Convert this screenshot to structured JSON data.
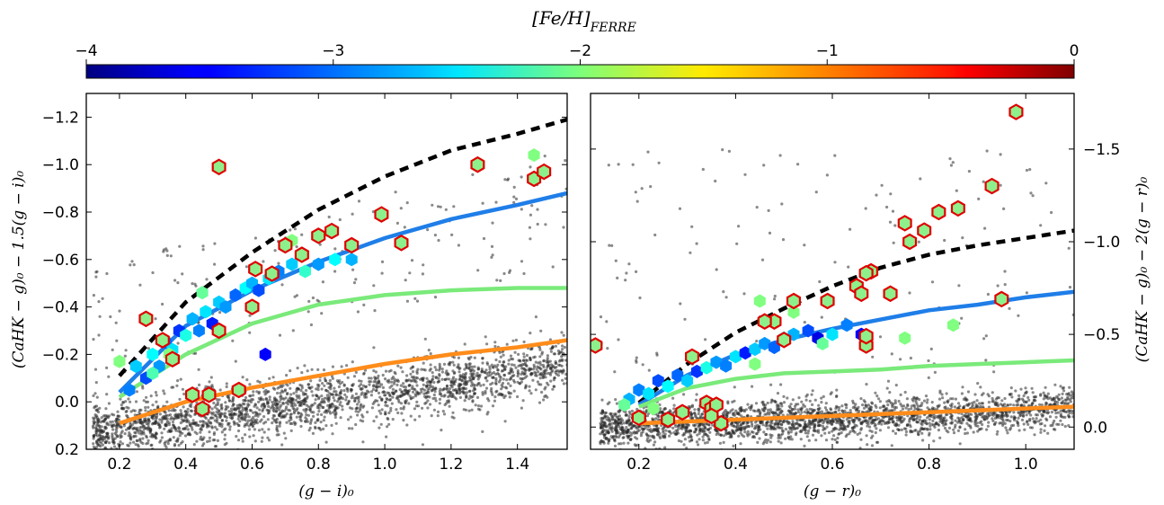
{
  "figure": {
    "colorbar": {
      "label": "[Fe/H]_FERRE",
      "label_main": "[Fe/H]",
      "label_sub": "FERRE",
      "range": [
        -4,
        0
      ],
      "ticks": [
        "−4",
        "−3",
        "−2",
        "−1",
        "0"
      ],
      "tick_values": [
        -4,
        -3,
        -2,
        -1,
        0
      ],
      "colormap": "jet"
    }
  },
  "chart_data": [
    {
      "type": "scatter",
      "panel": "left",
      "xlabel": "(g − i)₀",
      "ylabel": "(CaHK − g)₀ − 1.5(g − i)₀",
      "xlim": [
        0.1,
        1.55
      ],
      "ylim": [
        0.2,
        -1.3
      ],
      "y_inverted": true,
      "xticks": [
        "0.2",
        "0.4",
        "0.6",
        "0.8",
        "1.0",
        "1.2",
        "1.4"
      ],
      "xtick_values": [
        0.2,
        0.4,
        0.6,
        0.8,
        1.0,
        1.2,
        1.4
      ],
      "yticks": [
        "0.2",
        "0.0",
        "−0.2",
        "−0.4",
        "−0.6",
        "−0.8",
        "−1.0",
        "−1.2"
      ],
      "ytick_values": [
        0.2,
        0.0,
        -0.2,
        -0.4,
        -0.6,
        -0.8,
        -1.0,
        -1.2
      ],
      "lines": [
        {
          "color": "#000000",
          "style": "dashed",
          "points": [
            [
              0.2,
              -0.11
            ],
            [
              0.4,
              -0.42
            ],
            [
              0.6,
              -0.63
            ],
            [
              0.8,
              -0.81
            ],
            [
              1.0,
              -0.95
            ],
            [
              1.2,
              -1.06
            ],
            [
              1.4,
              -1.13
            ],
            [
              1.55,
              -1.19
            ]
          ]
        },
        {
          "color": "#1f7ee8",
          "style": "solid",
          "points": [
            [
              0.2,
              -0.04
            ],
            [
              0.4,
              -0.32
            ],
            [
              0.6,
              -0.47
            ],
            [
              0.8,
              -0.59
            ],
            [
              1.0,
              -0.69
            ],
            [
              1.2,
              -0.77
            ],
            [
              1.4,
              -0.83
            ],
            [
              1.55,
              -0.88
            ]
          ]
        },
        {
          "color": "#7aea7a",
          "style": "solid",
          "points": [
            [
              0.2,
              -0.02
            ],
            [
              0.4,
              -0.2
            ],
            [
              0.6,
              -0.33
            ],
            [
              0.8,
              -0.41
            ],
            [
              1.0,
              -0.45
            ],
            [
              1.2,
              -0.47
            ],
            [
              1.4,
              -0.48
            ],
            [
              1.55,
              -0.48
            ]
          ]
        },
        {
          "color": "#ff8c1a",
          "style": "solid",
          "points": [
            [
              0.2,
              0.09
            ],
            [
              0.4,
              0.0
            ],
            [
              0.6,
              -0.06
            ],
            [
              0.8,
              -0.11
            ],
            [
              1.0,
              -0.16
            ],
            [
              1.2,
              -0.2
            ],
            [
              1.4,
              -0.23
            ],
            [
              1.55,
              -0.26
            ]
          ]
        }
      ],
      "highlighted_points": [
        [
          0.5,
          -0.99
        ],
        [
          1.28,
          -1.0
        ],
        [
          1.45,
          -0.94
        ],
        [
          1.48,
          -0.97
        ],
        [
          0.99,
          -0.79
        ],
        [
          1.05,
          -0.67
        ],
        [
          0.84,
          -0.72
        ],
        [
          0.8,
          -0.7
        ],
        [
          0.9,
          -0.66
        ],
        [
          0.7,
          -0.66
        ],
        [
          0.75,
          -0.62
        ],
        [
          0.66,
          -0.54
        ],
        [
          0.61,
          -0.56
        ],
        [
          0.28,
          -0.35
        ],
        [
          0.33,
          -0.26
        ],
        [
          0.45,
          0.03
        ],
        [
          0.42,
          -0.03
        ],
        [
          0.47,
          -0.03
        ],
        [
          0.56,
          -0.05
        ],
        [
          0.36,
          -0.18
        ],
        [
          0.5,
          -0.3
        ],
        [
          0.6,
          -0.4
        ]
      ],
      "colored_points": [
        [
          0.23,
          -0.05,
          -3.0
        ],
        [
          0.25,
          -0.15,
          -2.7
        ],
        [
          0.28,
          -0.1,
          -3.2
        ],
        [
          0.3,
          -0.2,
          -2.5
        ],
        [
          0.32,
          -0.15,
          -2.9
        ],
        [
          0.34,
          -0.25,
          -3.1
        ],
        [
          0.36,
          -0.22,
          -2.6
        ],
        [
          0.38,
          -0.3,
          -3.3
        ],
        [
          0.4,
          -0.28,
          -2.4
        ],
        [
          0.42,
          -0.35,
          -2.8
        ],
        [
          0.44,
          -0.3,
          -3.0
        ],
        [
          0.46,
          -0.38,
          -2.6
        ],
        [
          0.48,
          -0.33,
          -3.4
        ],
        [
          0.5,
          -0.42,
          -2.7
        ],
        [
          0.52,
          -0.4,
          -2.9
        ],
        [
          0.55,
          -0.45,
          -3.1
        ],
        [
          0.58,
          -0.48,
          -2.5
        ],
        [
          0.6,
          -0.5,
          -2.8
        ],
        [
          0.62,
          -0.47,
          -3.2
        ],
        [
          0.65,
          -0.52,
          -2.6
        ],
        [
          0.68,
          -0.55,
          -3.0
        ],
        [
          0.72,
          -0.58,
          -2.7
        ],
        [
          0.76,
          -0.55,
          -2.3
        ],
        [
          0.8,
          -0.58,
          -2.9
        ],
        [
          0.85,
          -0.6,
          -2.5
        ],
        [
          0.9,
          -0.6,
          -2.8
        ],
        [
          0.3,
          -0.12,
          -2.2
        ],
        [
          0.35,
          -0.2,
          -2.0
        ],
        [
          0.45,
          -0.46,
          -2.1
        ],
        [
          0.2,
          -0.17,
          -2.0
        ],
        [
          1.45,
          -1.04,
          -2.0
        ],
        [
          0.72,
          -0.68,
          -2.0
        ],
        [
          0.64,
          -0.2,
          -3.5
        ]
      ],
      "background_points": "gray cloud"
    },
    {
      "type": "scatter",
      "panel": "right",
      "xlabel": "(g − r)₀",
      "ylabel": "(CaHK − g)₀ − 2(g − r)₀",
      "xlim": [
        0.1,
        1.1
      ],
      "ylim": [
        0.12,
        -1.8
      ],
      "y_inverted": true,
      "xticks": [
        "0.2",
        "0.4",
        "0.6",
        "0.8",
        "1.0"
      ],
      "xtick_values": [
        0.2,
        0.4,
        0.6,
        0.8,
        1.0
      ],
      "yticks": [
        "0.0",
        "−0.5",
        "−1.0",
        "−1.5"
      ],
      "ytick_values": [
        0.0,
        -0.5,
        -1.0,
        -1.5
      ],
      "lines": [
        {
          "color": "#000000",
          "style": "dashed",
          "points": [
            [
              0.2,
              -0.13
            ],
            [
              0.3,
              -0.34
            ],
            [
              0.4,
              -0.51
            ],
            [
              0.5,
              -0.64
            ],
            [
              0.6,
              -0.76
            ],
            [
              0.7,
              -0.86
            ],
            [
              0.8,
              -0.93
            ],
            [
              0.9,
              -0.98
            ],
            [
              1.0,
              -1.02
            ],
            [
              1.1,
              -1.06
            ]
          ]
        },
        {
          "color": "#1f7ee8",
          "style": "solid",
          "points": [
            [
              0.2,
              -0.12
            ],
            [
              0.3,
              -0.28
            ],
            [
              0.4,
              -0.39
            ],
            [
              0.5,
              -0.47
            ],
            [
              0.6,
              -0.53
            ],
            [
              0.7,
              -0.58
            ],
            [
              0.8,
              -0.63
            ],
            [
              0.9,
              -0.66
            ],
            [
              1.0,
              -0.7
            ],
            [
              1.1,
              -0.73
            ]
          ]
        },
        {
          "color": "#7aea7a",
          "style": "solid",
          "points": [
            [
              0.2,
              -0.11
            ],
            [
              0.3,
              -0.21
            ],
            [
              0.4,
              -0.26
            ],
            [
              0.5,
              -0.29
            ],
            [
              0.6,
              -0.3
            ],
            [
              0.7,
              -0.31
            ],
            [
              0.8,
              -0.33
            ],
            [
              0.9,
              -0.34
            ],
            [
              1.0,
              -0.35
            ],
            [
              1.1,
              -0.36
            ]
          ]
        },
        {
          "color": "#ff8c1a",
          "style": "solid",
          "points": [
            [
              0.2,
              -0.02
            ],
            [
              0.4,
              -0.04
            ],
            [
              0.6,
              -0.06
            ],
            [
              0.8,
              -0.08
            ],
            [
              1.0,
              -0.1
            ],
            [
              1.1,
              -0.11
            ]
          ]
        }
      ],
      "highlighted_points": [
        [
          0.98,
          -1.7
        ],
        [
          0.93,
          -1.3
        ],
        [
          0.86,
          -1.18
        ],
        [
          0.82,
          -1.16
        ],
        [
          0.79,
          -1.06
        ],
        [
          0.76,
          -1.0
        ],
        [
          0.75,
          -1.1
        ],
        [
          0.68,
          -0.84
        ],
        [
          0.67,
          -0.83
        ],
        [
          0.65,
          -0.76
        ],
        [
          0.66,
          -0.72
        ],
        [
          0.72,
          -0.72
        ],
        [
          0.59,
          -0.68
        ],
        [
          0.52,
          -0.68
        ],
        [
          0.48,
          -0.57
        ],
        [
          0.46,
          -0.57
        ],
        [
          0.67,
          -0.44
        ],
        [
          0.67,
          -0.49
        ],
        [
          0.5,
          -0.47
        ],
        [
          0.34,
          -0.13
        ],
        [
          0.35,
          -0.1
        ],
        [
          0.36,
          -0.12
        ],
        [
          0.29,
          -0.08
        ],
        [
          0.2,
          -0.05
        ],
        [
          0.31,
          -0.38
        ],
        [
          0.11,
          -0.44
        ],
        [
          0.26,
          -0.04
        ],
        [
          0.37,
          -0.02
        ],
        [
          0.35,
          -0.06
        ],
        [
          0.95,
          -0.69
        ]
      ],
      "colored_points": [
        [
          0.18,
          -0.15,
          -2.8
        ],
        [
          0.2,
          -0.2,
          -3.0
        ],
        [
          0.22,
          -0.18,
          -2.6
        ],
        [
          0.24,
          -0.25,
          -3.2
        ],
        [
          0.26,
          -0.22,
          -2.5
        ],
        [
          0.28,
          -0.28,
          -3.1
        ],
        [
          0.3,
          -0.25,
          -2.7
        ],
        [
          0.32,
          -0.3,
          -3.3
        ],
        [
          0.34,
          -0.32,
          -2.4
        ],
        [
          0.36,
          -0.35,
          -2.9
        ],
        [
          0.38,
          -0.33,
          -3.0
        ],
        [
          0.4,
          -0.38,
          -2.6
        ],
        [
          0.42,
          -0.4,
          -3.4
        ],
        [
          0.44,
          -0.42,
          -2.7
        ],
        [
          0.46,
          -0.45,
          -2.9
        ],
        [
          0.48,
          -0.43,
          -3.1
        ],
        [
          0.5,
          -0.48,
          -2.5
        ],
        [
          0.52,
          -0.5,
          -2.8
        ],
        [
          0.55,
          -0.52,
          -3.2
        ],
        [
          0.57,
          -0.48,
          -3.6
        ],
        [
          0.6,
          -0.5,
          -2.6
        ],
        [
          0.63,
          -0.55,
          -3.0
        ],
        [
          0.17,
          -0.12,
          -2.1
        ],
        [
          0.23,
          -0.1,
          -2.0
        ],
        [
          0.45,
          -0.68,
          -2.0
        ],
        [
          0.52,
          -0.62,
          -2.0
        ],
        [
          0.58,
          -0.45,
          -2.1
        ],
        [
          0.75,
          -0.48,
          -2.0
        ],
        [
          0.85,
          -0.55,
          -2.0
        ],
        [
          0.44,
          -0.34,
          -2.0
        ],
        [
          0.66,
          -0.5,
          -3.5
        ]
      ],
      "background_points": "gray cloud"
    }
  ]
}
